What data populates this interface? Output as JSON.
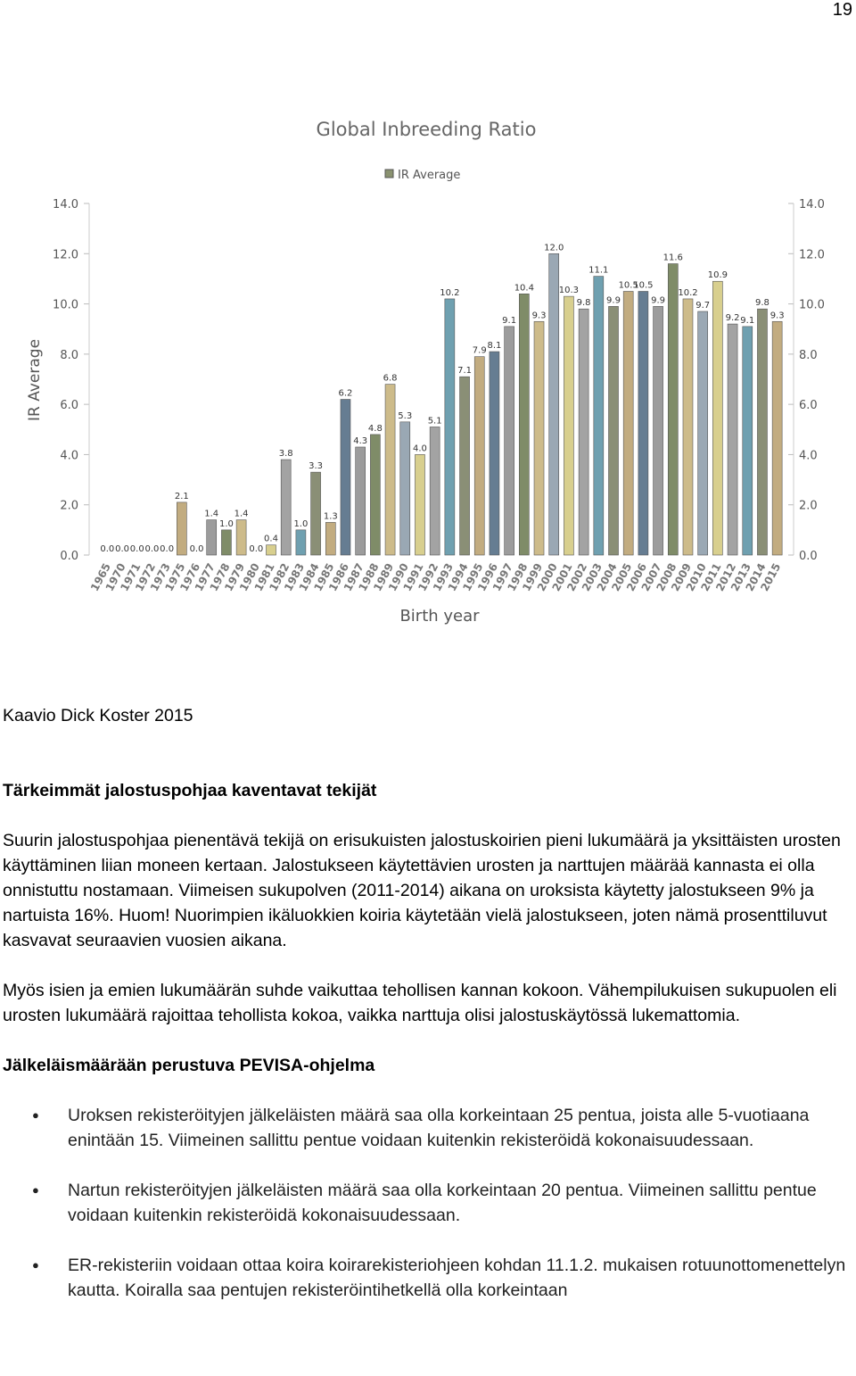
{
  "page_number": "19",
  "chart_data": {
    "type": "bar",
    "title": "Global Inbreeding Ratio",
    "x_label": "Birth year",
    "y_label": "IR Average",
    "categories": [
      "1965",
      "1970",
      "1971",
      "1972",
      "1973",
      "1975",
      "1976",
      "1977",
      "1978",
      "1979",
      "1980",
      "1981",
      "1982",
      "1983",
      "1984",
      "1985",
      "1986",
      "1987",
      "1988",
      "1989",
      "1990",
      "1991",
      "1992",
      "1993",
      "1994",
      "1995",
      "1996",
      "1997",
      "1998",
      "1999",
      "2000",
      "2001",
      "2002",
      "2003",
      "2004",
      "2005",
      "2006",
      "2007",
      "2008",
      "2009",
      "2010",
      "2011",
      "2012",
      "2013",
      "2014",
      "2015"
    ],
    "series": [
      {
        "name": "IR Average",
        "color": "#8a9270",
        "values": [
          0,
          0,
          0,
          0,
          0,
          2.1,
          0,
          1.4,
          1,
          1.4,
          0,
          0.4,
          3.8,
          1,
          3.3,
          1.3,
          6.2,
          4.3,
          4.8,
          6.8,
          5.3,
          4,
          5.1,
          10.2,
          7.1,
          7.9,
          8.1,
          9.1,
          10.4,
          9.3,
          12,
          10.3,
          9.8,
          11.1,
          9.9,
          10.5,
          10.5,
          9.9,
          11.6,
          10.2,
          9.7,
          10.9,
          9.2,
          9.1,
          9.8,
          9.3
        ],
        "value_labels": [
          "0.0",
          "0.0",
          "0.0",
          "0.0",
          "0.0",
          "2.1",
          "0.0",
          "1.4",
          "1.0",
          "1.4",
          "0.0",
          "0.4",
          "3.8",
          "1.0",
          "3.3",
          "1.3",
          "6.2",
          "4.3",
          "4.8",
          "6.8",
          "5.3",
          "4.0",
          "5.1",
          "10.2",
          "7.1",
          "7.9",
          "8.1",
          "9.1",
          "10.4",
          "9.3",
          "12.0",
          "10.3",
          "9.8",
          "11.1",
          "9.9",
          "10.5",
          "10.5",
          "9.9",
          "11.6",
          "10.2",
          "9.7",
          "10.9",
          "9.2",
          "9.1",
          "9.8",
          "9.3"
        ]
      }
    ],
    "bar_colors": [
      "#9aa8b4",
      "#d8cf8e",
      "#a3a3a3",
      "#6fa0b0",
      "#8a8f76",
      "#c2ac80",
      "#667d92",
      "#9c9c9c",
      "#7f8c68",
      "#cdbb8a"
    ],
    "ylim": [
      0,
      14
    ],
    "yticks": [
      {
        "value": 0,
        "label": "0.0"
      },
      {
        "value": 2,
        "label": "2.0"
      },
      {
        "value": 4,
        "label": "4.0"
      },
      {
        "value": 6,
        "label": "6.0"
      },
      {
        "value": 8,
        "label": "8.0"
      },
      {
        "value": 10,
        "label": "10.0"
      },
      {
        "value": 12,
        "label": "12.0"
      },
      {
        "value": 14,
        "label": "14.0"
      }
    ],
    "y2lim": [
      0,
      14
    ],
    "y2ticks": [
      {
        "value": 0,
        "label": "0.0"
      },
      {
        "value": 2,
        "label": "2.0"
      },
      {
        "value": 4,
        "label": "4.0"
      },
      {
        "value": 6,
        "label": "6.0"
      },
      {
        "value": 8,
        "label": "8.0"
      },
      {
        "value": 10,
        "label": "10.0"
      },
      {
        "value": 12,
        "label": "12.0"
      },
      {
        "value": 14,
        "label": "14.0"
      }
    ],
    "legend": "top"
  },
  "caption": "Kaavio Dick Koster 2015",
  "section1": {
    "heading": "Tärkeimmät jalostuspohjaa kaventavat tekijät",
    "paragraphs": [
      "Suurin jalostuspohjaa pienentävä tekijä on erisukuisten jalostuskoirien pieni lukumäärä ja yksittäisten urosten käyttäminen liian moneen kertaan. Jalostukseen käytettävien urosten ja narttujen määrää kannasta ei olla onnistuttu nostamaan. Viimeisen sukupolven (2011-2014) aikana on uroksista käytetty jalostukseen  9% ja nartuista 16%. Huom! Nuorimpien ikäluokkien koiria käytetään vielä jalostukseen, joten nämä prosenttiluvut kasvavat seuraavien vuosien aikana.",
      "Myös isien ja emien lukumäärän suhde vaikuttaa tehollisen kannan kokoon. Vähempilukuisen sukupuolen eli urosten lukumäärä rajoittaa tehollista kokoa, vaikka narttuja olisi jalostuskäytössä lukemattomia."
    ]
  },
  "section2": {
    "heading": "Jälkeläismäärään perustuva PEVISA-ohjelma",
    "bullets": [
      "Uroksen rekisteröityjen jälkeläisten määrä saa olla korkeintaan 25 pentua, joista alle 5-vuotiaana enintään 15. Viimeinen sallittu pentue voidaan kuitenkin rekisteröidä kokonaisuudessaan.",
      "Nartun rekisteröityjen jälkeläisten määrä saa olla korkeintaan 20 pentua. Viimeinen sallittu pentue voidaan kuitenkin rekisteröidä kokonaisuudessaan.",
      "ER-rekisteriin voidaan ottaa koira koirarekisteriohjeen kohdan 11.1.2. mukaisen rotuunottomenettelyn kautta. Koiralla saa pentujen rekisteröintihetkellä olla korkeintaan"
    ]
  }
}
